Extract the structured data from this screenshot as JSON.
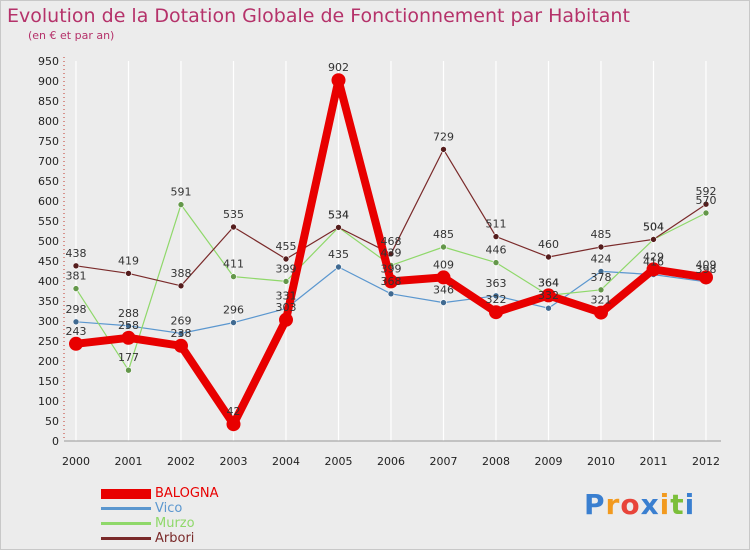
{
  "header": {
    "title": "Evolution de la Dotation Globale de Fonctionnement par Habitant",
    "subtitle": "(en € et par an)"
  },
  "logo": {
    "letters": [
      {
        "ch": "P",
        "color": "#3a7fd0"
      },
      {
        "ch": "r",
        "color": "#f29a1f"
      },
      {
        "ch": "o",
        "color": "#e8443a"
      },
      {
        "ch": "x",
        "color": "#3a7fd0"
      },
      {
        "ch": "i",
        "color": "#f29a1f"
      },
      {
        "ch": "t",
        "color": "#7bbf3a"
      },
      {
        "ch": "i",
        "color": "#3a7fd0"
      }
    ]
  },
  "chart_data": {
    "type": "line",
    "title": "Evolution de la Dotation Globale de Fonctionnement par Habitant",
    "subtitle": "(en € et par an)",
    "xlabel": "",
    "ylabel": "",
    "x": [
      "2000",
      "2001",
      "2002",
      "2003",
      "2004",
      "2005",
      "2006",
      "2007",
      "2008",
      "2009",
      "2010",
      "2011",
      "2012"
    ],
    "ylim": [
      0,
      950
    ],
    "yticks": [
      0,
      50,
      100,
      150,
      200,
      250,
      300,
      350,
      400,
      450,
      500,
      550,
      600,
      650,
      700,
      750,
      800,
      850,
      900,
      950
    ],
    "grid": "vertical",
    "legend_position": "bottom-left",
    "series": [
      {
        "name": "BALOGNA",
        "color": "#e80000",
        "width": 8,
        "marker": 7,
        "values": [
          243,
          258,
          238,
          42,
          303,
          902,
          399,
          409,
          322,
          364,
          321,
          429,
          409
        ]
      },
      {
        "name": "Vico",
        "color": "#5b97cf",
        "width": 1.2,
        "marker": 3,
        "values": [
          298,
          288,
          269,
          296,
          331,
          435,
          368,
          346,
          363,
          332,
          424,
          416,
          398
        ]
      },
      {
        "name": "Murzo",
        "color": "#8fd86a",
        "width": 1.2,
        "marker": 3,
        "values": [
          381,
          177,
          591,
          411,
          399,
          534,
          439,
          485,
          446,
          364,
          378,
          504,
          570
        ]
      },
      {
        "name": "Arbori",
        "color": "#7a2a2a",
        "width": 1.2,
        "marker": 3,
        "values": [
          438,
          419,
          388,
          535,
          455,
          534,
          468,
          729,
          511,
          460,
          485,
          504,
          592
        ]
      }
    ]
  }
}
